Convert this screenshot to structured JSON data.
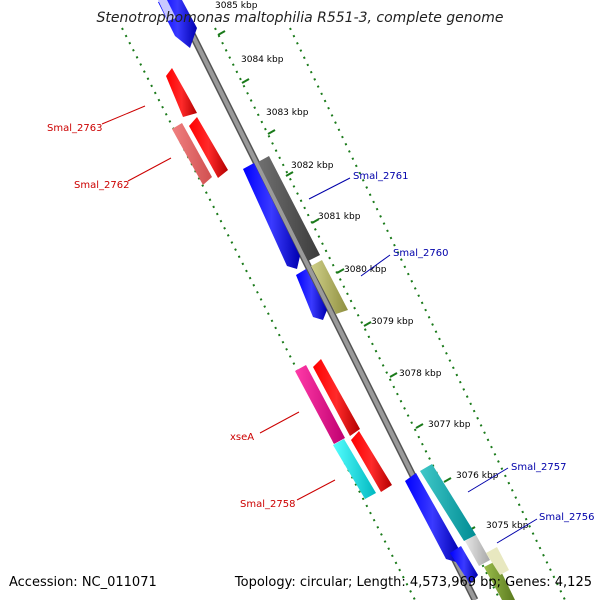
{
  "title": "Stenotrophomonas maltophilia R551-3, complete genome",
  "footer": {
    "accession": "Accession: NC_011071",
    "summary": "Topology: circular; Length: 4,573,969 bp; Genes: 4,125"
  },
  "ruler": {
    "unit": "kbp",
    "ticks": [
      {
        "label": "3085 kbp"
      },
      {
        "label": "3084 kbp"
      },
      {
        "label": "3083 kbp"
      },
      {
        "label": "3082 kbp"
      },
      {
        "label": "3081 kbp"
      },
      {
        "label": "3080 kbp"
      },
      {
        "label": "3079 kbp"
      },
      {
        "label": "3078 kbp"
      },
      {
        "label": "3077 kbp"
      },
      {
        "label": "3076 kbp"
      },
      {
        "label": "3075 kbp"
      }
    ]
  },
  "gene_labels": {
    "smal_2763": "Smal_2763",
    "smal_2762": "Smal_2762",
    "xsea": "xseA",
    "smal_2758": "Smal_2758",
    "smal_2761": "Smal_2761",
    "smal_2760": "Smal_2760",
    "smal_2757": "Smal_2757",
    "smal_2756": "Smal_2756"
  },
  "colors": {
    "reverse_label": "#cc0000",
    "forward_label": "#0000aa",
    "backbone": "#888888",
    "tick": "#1a7a1a"
  }
}
